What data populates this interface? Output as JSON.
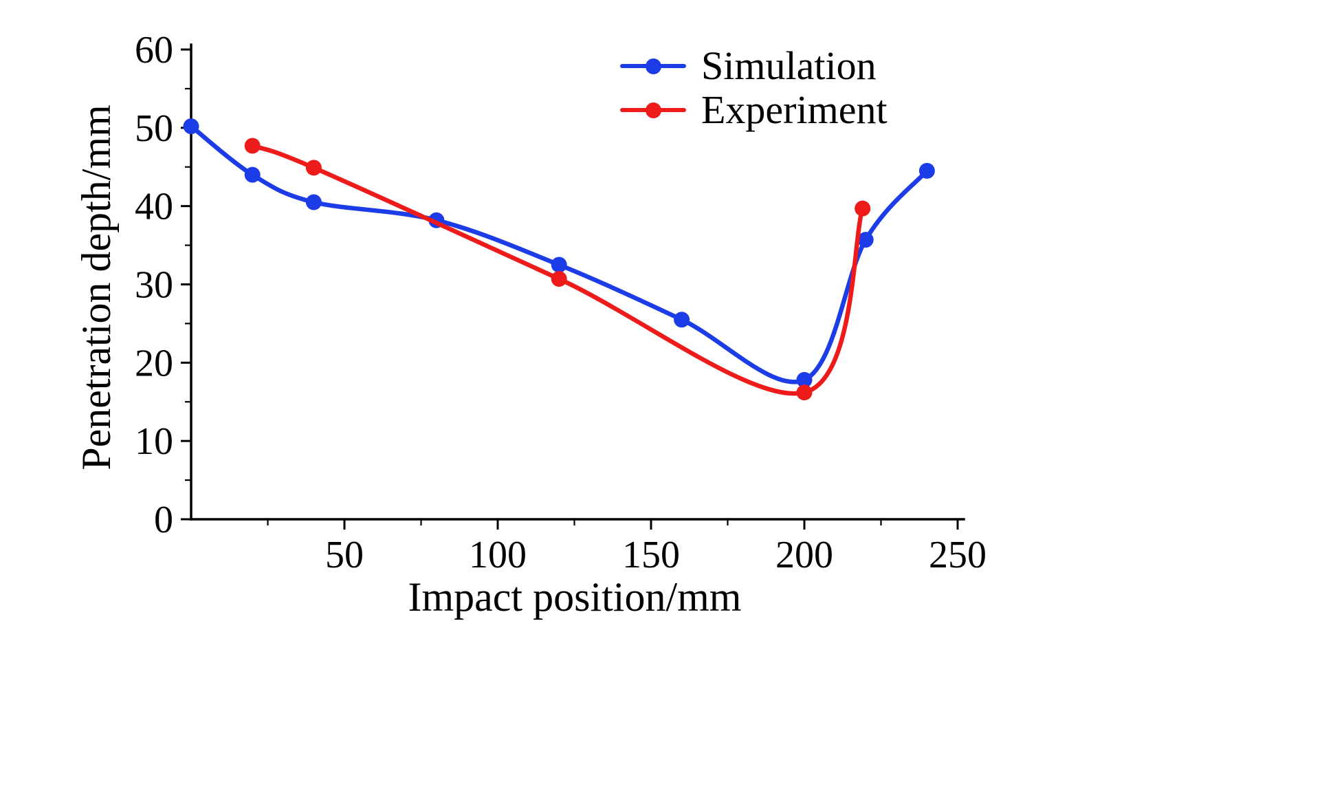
{
  "figure": {
    "background": "#ffffff"
  },
  "legend": {
    "items": [
      {
        "label": "Simulation",
        "color": "#1b3ce6"
      },
      {
        "label": "Experiment",
        "color": "#ee1b1b"
      }
    ]
  },
  "chart_data": {
    "type": "line",
    "title": "",
    "xlabel": "Impact position/mm",
    "ylabel": "Penetration depth/mm",
    "xlim": [
      0,
      250
    ],
    "ylim": [
      0,
      60
    ],
    "x_ticks": [
      50,
      100,
      150,
      200,
      250
    ],
    "y_ticks": [
      0,
      10,
      20,
      30,
      40,
      50,
      60
    ],
    "x_minor_step": 25,
    "y_minor_step": 5,
    "grid": false,
    "legend_position": "upper right",
    "series": [
      {
        "name": "Simulation",
        "color": "#1b3ce6",
        "x": [
          0,
          20,
          40,
          80,
          120,
          160,
          200,
          220,
          240
        ],
        "y": [
          50.2,
          44.0,
          40.5,
          38.2,
          32.5,
          25.5,
          17.8,
          35.7,
          44.5
        ]
      },
      {
        "name": "Experiment",
        "color": "#ee1b1b",
        "x": [
          20,
          40,
          120,
          200,
          219
        ],
        "y": [
          47.7,
          44.9,
          30.7,
          16.2,
          39.7
        ]
      }
    ]
  }
}
